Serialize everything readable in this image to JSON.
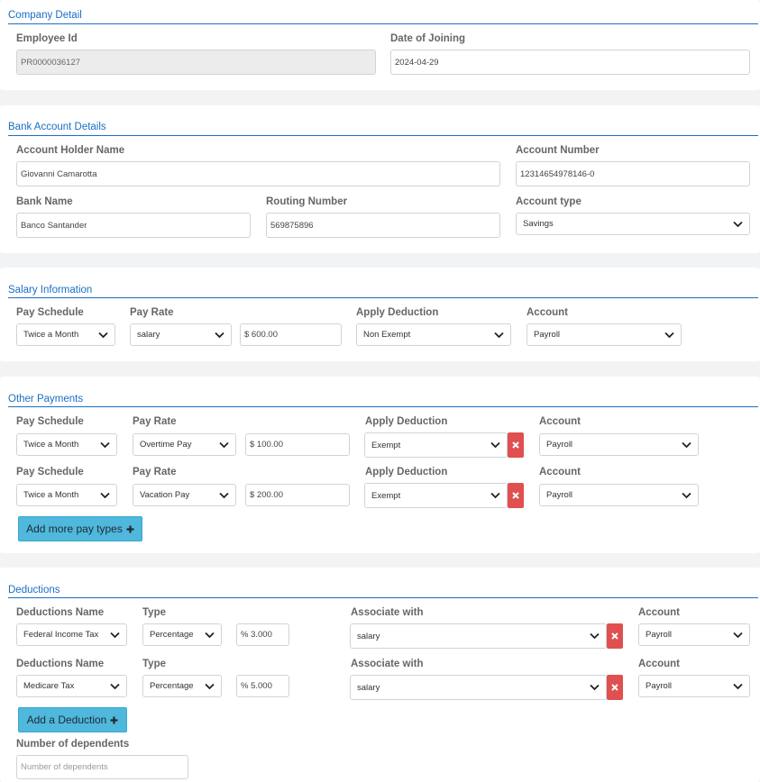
{
  "company": {
    "title": "Company Detail",
    "employee_id_label": "Employee Id",
    "employee_id_value": "PR0000036127",
    "doj_label": "Date of Joining",
    "doj_value": "2024-04-29"
  },
  "bank": {
    "title": "Bank Account Details",
    "holder_label": "Account Holder Name",
    "holder_value": "Giovanni Camarotta",
    "account_number_label": "Account Number",
    "account_number_value": "12314654978146-0",
    "bank_name_label": "Bank Name",
    "bank_name_value": "Banco Santander",
    "routing_label": "Routing Number",
    "routing_value": "569875896",
    "account_type_label": "Account type",
    "account_type_value": "Savings"
  },
  "salary": {
    "title": "Salary Information",
    "schedule_label": "Pay Schedule",
    "schedule_value": "Twice a Month",
    "rate_label": "Pay Rate",
    "rate_value": "salary",
    "amount_value": "$ 600.00",
    "deduction_label": "Apply Deduction",
    "deduction_value": "Non Exempt",
    "account_label": "Account",
    "account_value": "Payroll"
  },
  "other": {
    "title": "Other Payments",
    "rows": [
      {
        "schedule_label": "Pay Schedule",
        "schedule_value": "Twice a Month",
        "rate_label": "Pay Rate",
        "rate_value": "Overtime Pay",
        "amount_value": "$ 100.00",
        "deduction_label": "Apply Deduction",
        "deduction_value": "Exempt",
        "account_label": "Account",
        "account_value": "Payroll"
      },
      {
        "schedule_label": "Pay Schedule",
        "schedule_value": "Twice a Month",
        "rate_label": "Pay Rate",
        "rate_value": "Vacation Pay",
        "amount_value": "$ 200.00",
        "deduction_label": "Apply Deduction",
        "deduction_value": "Exempt",
        "account_label": "Account",
        "account_value": "Payroll"
      }
    ],
    "add_label": "Add more pay types"
  },
  "deductions": {
    "title": "Deductions",
    "rows": [
      {
        "name_label": "Deductions Name",
        "name_value": "Federal Income Tax",
        "type_label": "Type",
        "type_value": "Percentage",
        "amount_value": "% 3.000",
        "assoc_label": "Associate with",
        "assoc_value": "salary",
        "account_label": "Account",
        "account_value": "Payroll"
      },
      {
        "name_label": "Deductions Name",
        "name_value": "Medicare Tax",
        "type_label": "Type",
        "type_value": "Percentage",
        "amount_value": "% 5.000",
        "assoc_label": "Associate with",
        "assoc_value": "salary",
        "account_label": "Account",
        "account_value": "Payroll"
      }
    ],
    "add_label": "Add a Deduction",
    "dependents_label": "Number of dependents",
    "dependents_placeholder": "Number of dependents"
  },
  "colors": {
    "accent": "#1a6fc4",
    "danger": "#e05050",
    "button": "#4fb8dc"
  }
}
